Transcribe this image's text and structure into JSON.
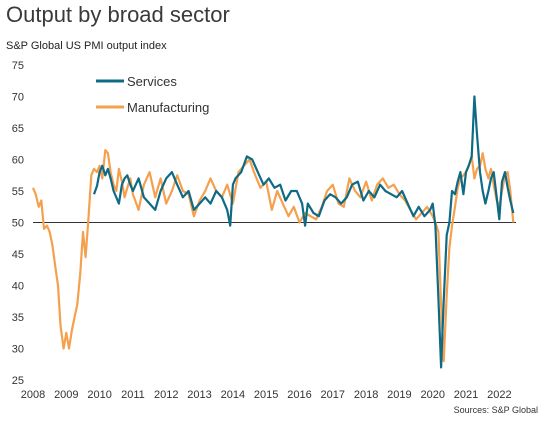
{
  "chart_data": {
    "type": "line",
    "title": "Output by broad sector",
    "subtitle": "S&P Global US PMI output index",
    "source": "Sources: S&P Global",
    "x_ticks": [
      "2008",
      "2009",
      "2010",
      "2011",
      "2012",
      "2013",
      "2014",
      "2015",
      "2016",
      "2017",
      "2018",
      "2019",
      "2020",
      "2021",
      "2022"
    ],
    "y_ticks": [
      25,
      30,
      35,
      40,
      45,
      50,
      55,
      60,
      65,
      70,
      75
    ],
    "ylim": [
      25,
      75
    ],
    "xlim": [
      2008.0,
      2022.5
    ],
    "reference_line": 50,
    "legend_position": "top-left",
    "colors": {
      "services": "#0e6a85",
      "manufacturing": "#f5a04e"
    },
    "series": [
      {
        "name": "Services",
        "key": "services",
        "x": [
          2009.83,
          2009.92,
          2010.0,
          2010.08,
          2010.17,
          2010.25,
          2010.33,
          2010.42,
          2010.5,
          2010.58,
          2010.67,
          2010.75,
          2010.83,
          2010.92,
          2011.0,
          2011.17,
          2011.33,
          2011.5,
          2011.67,
          2011.83,
          2012.0,
          2012.17,
          2012.33,
          2012.5,
          2012.67,
          2012.83,
          2013.0,
          2013.17,
          2013.33,
          2013.5,
          2013.67,
          2013.75,
          2013.83,
          2013.92,
          2014.0,
          2014.08,
          2014.25,
          2014.42,
          2014.58,
          2014.75,
          2014.92,
          2015.08,
          2015.25,
          2015.42,
          2015.58,
          2015.75,
          2015.92,
          2016.08,
          2016.17,
          2016.25,
          2016.42,
          2016.58,
          2016.75,
          2016.92,
          2017.08,
          2017.25,
          2017.42,
          2017.58,
          2017.75,
          2017.92,
          2018.08,
          2018.25,
          2018.42,
          2018.58,
          2018.75,
          2018.92,
          2019.08,
          2019.25,
          2019.42,
          2019.58,
          2019.75,
          2019.92,
          2020.0,
          2020.08,
          2020.17,
          2020.25,
          2020.33,
          2020.42,
          2020.5,
          2020.58,
          2020.67,
          2020.75,
          2020.83,
          2020.92,
          2021.0,
          2021.08,
          2021.17,
          2021.25,
          2021.33,
          2021.42,
          2021.5,
          2021.58,
          2021.67,
          2021.75,
          2021.83,
          2021.92,
          2022.0,
          2022.08,
          2022.17,
          2022.25,
          2022.33,
          2022.42
        ],
        "values": [
          54.5,
          55.8,
          58.0,
          59.0,
          57.5,
          58.5,
          57.0,
          55.0,
          54.0,
          53.0,
          56.0,
          57.0,
          57.5,
          56.0,
          55.0,
          57.0,
          54.0,
          53.0,
          52.0,
          55.0,
          57.0,
          58.0,
          56.0,
          54.0,
          55.0,
          52.0,
          53.0,
          54.0,
          53.0,
          55.0,
          54.0,
          53.0,
          52.0,
          49.5,
          56.0,
          57.0,
          58.0,
          60.5,
          60.0,
          58.0,
          56.0,
          57.0,
          55.5,
          56.0,
          53.5,
          55.0,
          55.0,
          53.0,
          49.5,
          53.0,
          51.5,
          51.0,
          53.5,
          54.5,
          54.0,
          53.0,
          54.0,
          56.0,
          56.5,
          53.5,
          55.0,
          54.0,
          56.0,
          55.0,
          54.5,
          54.0,
          55.0,
          53.0,
          51.0,
          52.5,
          51.0,
          52.0,
          53.0,
          49.5,
          38.0,
          27.0,
          37.5,
          48.0,
          50.0,
          55.0,
          54.5,
          56.5,
          58.0,
          54.5,
          58.0,
          59.0,
          60.5,
          70.0,
          64.0,
          58.0,
          55.0,
          53.0,
          55.0,
          57.0,
          58.0,
          54.0,
          50.5,
          56.5,
          58.0,
          55.5,
          53.5,
          51.5
        ]
      },
      {
        "name": "Manufacturing",
        "key": "manufacturing",
        "x": [
          2008.0,
          2008.08,
          2008.17,
          2008.25,
          2008.33,
          2008.42,
          2008.5,
          2008.58,
          2008.67,
          2008.75,
          2008.83,
          2008.92,
          2009.0,
          2009.08,
          2009.17,
          2009.25,
          2009.33,
          2009.42,
          2009.5,
          2009.58,
          2009.67,
          2009.75,
          2009.83,
          2009.92,
          2010.0,
          2010.08,
          2010.17,
          2010.25,
          2010.33,
          2010.42,
          2010.5,
          2010.58,
          2010.67,
          2010.75,
          2010.83,
          2010.92,
          2011.0,
          2011.17,
          2011.33,
          2011.5,
          2011.67,
          2011.83,
          2012.0,
          2012.17,
          2012.33,
          2012.5,
          2012.67,
          2012.83,
          2013.0,
          2013.17,
          2013.33,
          2013.5,
          2013.67,
          2013.83,
          2014.0,
          2014.17,
          2014.33,
          2014.5,
          2014.67,
          2014.83,
          2015.0,
          2015.17,
          2015.33,
          2015.5,
          2015.67,
          2015.83,
          2016.0,
          2016.17,
          2016.33,
          2016.5,
          2016.67,
          2016.83,
          2017.0,
          2017.17,
          2017.33,
          2017.5,
          2017.67,
          2017.83,
          2018.0,
          2018.17,
          2018.33,
          2018.5,
          2018.67,
          2018.83,
          2019.0,
          2019.17,
          2019.33,
          2019.5,
          2019.67,
          2019.83,
          2020.0,
          2020.08,
          2020.17,
          2020.25,
          2020.33,
          2020.42,
          2020.5,
          2020.58,
          2020.67,
          2020.75,
          2020.83,
          2020.92,
          2021.0,
          2021.08,
          2021.17,
          2021.25,
          2021.33,
          2021.42,
          2021.5,
          2021.58,
          2021.67,
          2021.75,
          2021.83,
          2021.92,
          2022.0,
          2022.08,
          2022.17,
          2022.25,
          2022.33,
          2022.42
        ],
        "values": [
          55.5,
          54.5,
          52.5,
          53.5,
          49.0,
          49.5,
          48.5,
          46.5,
          43.0,
          40.0,
          33.5,
          30.0,
          32.5,
          30.0,
          33.0,
          35.0,
          37.0,
          42.0,
          48.5,
          44.5,
          51.0,
          57.5,
          58.5,
          58.0,
          59.0,
          57.0,
          61.5,
          61.0,
          58.0,
          56.0,
          55.0,
          58.5,
          56.5,
          54.0,
          55.5,
          57.0,
          54.5,
          52.0,
          56.0,
          58.0,
          54.0,
          57.0,
          53.0,
          55.0,
          57.5,
          55.0,
          54.5,
          51.0,
          53.5,
          55.0,
          57.0,
          55.0,
          54.0,
          56.0,
          53.0,
          58.0,
          59.0,
          60.0,
          57.5,
          55.5,
          56.5,
          52.0,
          55.0,
          53.0,
          51.0,
          52.5,
          50.0,
          51.5,
          51.0,
          50.5,
          52.5,
          55.0,
          56.0,
          53.0,
          52.5,
          57.0,
          55.0,
          54.0,
          56.5,
          53.5,
          56.0,
          57.0,
          55.5,
          56.0,
          54.5,
          53.5,
          52.0,
          50.5,
          51.5,
          52.5,
          51.0,
          50.0,
          48.5,
          37.0,
          28.0,
          38.5,
          46.0,
          49.5,
          52.5,
          55.5,
          57.0,
          57.5,
          58.0,
          59.0,
          60.5,
          57.0,
          58.5,
          59.0,
          61.0,
          58.5,
          57.0,
          58.5,
          56.0,
          53.5,
          52.5,
          55.0,
          57.5,
          58.0,
          55.0,
          50.0
        ]
      }
    ]
  }
}
